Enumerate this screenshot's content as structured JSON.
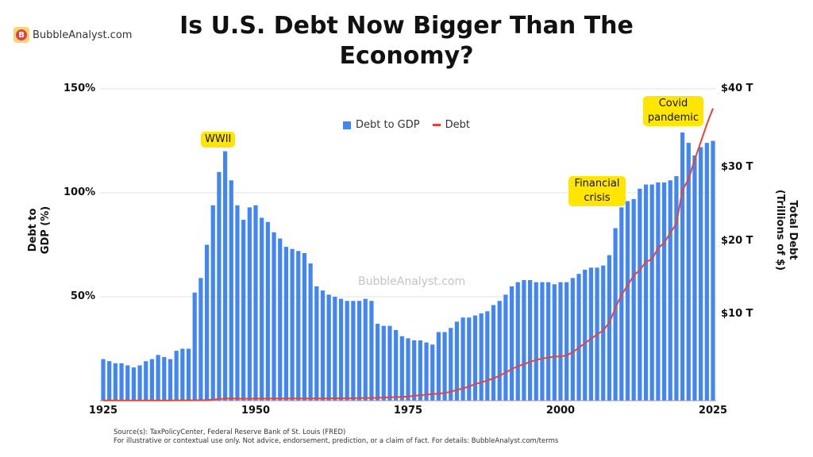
{
  "brand": {
    "logo_letter": "B",
    "name": "BubbleAnalyst.com"
  },
  "title": "Is U.S. Debt Now Bigger Than The Economy?",
  "watermark": "BubbleAnalyst.com",
  "footer": {
    "source": "Source(s): TaxPolicyCenter, Federal Reserve Bank of St. Louis (FRED)",
    "disclaimer": "For illustrative or contextual use only. Not advice, endorsement, prediction, or a claim of fact. For details: BubbleAnalyst.com/terms"
  },
  "chart_data": {
    "type": "bar+line",
    "title": "Is U.S. Debt Now Bigger Than The Economy?",
    "x_start": 1925,
    "x_end": 2025,
    "x_ticks": [
      "1925",
      "1950",
      "1975",
      "2000",
      "2025"
    ],
    "y_left": {
      "label": "Debt to GDP (%)",
      "ticks": [
        "150%",
        "100%",
        "50%"
      ],
      "range": [
        0,
        150
      ]
    },
    "y_right": {
      "label": "Total Debt (Trillions of $)",
      "ticks": [
        "$40 T",
        "$30 T",
        "$20 T",
        "$10 T"
      ],
      "range": [
        0,
        40
      ]
    },
    "legend": {
      "position": "top-center",
      "items": [
        "Debt to GDP",
        "Debt"
      ]
    },
    "grid": true,
    "colors": {
      "bars": "#4285f4",
      "line": "#ea4335",
      "annotation": "#ffe600"
    },
    "series": [
      {
        "name": "Debt to GDP",
        "axis": "left",
        "type": "bar",
        "values": [
          20,
          19,
          18,
          18,
          17,
          16,
          17,
          19,
          20,
          22,
          21,
          20,
          24,
          25,
          25,
          52,
          59,
          75,
          94,
          110,
          120,
          106,
          94,
          87,
          93,
          94,
          88,
          86,
          81,
          78,
          74,
          73,
          72,
          71,
          66,
          55,
          53,
          51,
          50,
          49,
          48,
          48,
          48,
          49,
          48,
          37,
          36,
          36,
          34,
          31,
          30,
          29,
          29,
          28,
          27,
          33,
          33,
          35,
          38,
          40,
          40,
          41,
          42,
          43,
          46,
          48,
          51,
          55,
          57,
          58,
          58,
          57,
          57,
          57,
          56,
          57,
          57,
          59,
          61,
          63,
          64,
          64,
          65,
          70,
          83,
          93,
          96,
          97,
          102,
          104,
          104,
          105,
          105,
          106,
          108,
          129,
          124,
          118,
          122,
          124,
          125
        ]
      },
      {
        "name": "Debt",
        "axis": "right",
        "type": "line",
        "values": [
          0.02,
          0.02,
          0.02,
          0.02,
          0.02,
          0.02,
          0.02,
          0.02,
          0.02,
          0.03,
          0.03,
          0.03,
          0.04,
          0.04,
          0.04,
          0.05,
          0.06,
          0.08,
          0.14,
          0.2,
          0.26,
          0.27,
          0.26,
          0.25,
          0.25,
          0.26,
          0.26,
          0.26,
          0.27,
          0.27,
          0.27,
          0.27,
          0.27,
          0.28,
          0.28,
          0.29,
          0.29,
          0.3,
          0.31,
          0.31,
          0.32,
          0.32,
          0.33,
          0.35,
          0.35,
          0.37,
          0.4,
          0.43,
          0.46,
          0.48,
          0.54,
          0.62,
          0.7,
          0.77,
          0.83,
          0.91,
          0.99,
          1.14,
          1.38,
          1.57,
          1.82,
          2.13,
          2.35,
          2.6,
          2.86,
          3.21,
          3.6,
          4.06,
          4.41,
          4.69,
          4.97,
          5.22,
          5.41,
          5.53,
          5.66,
          5.67,
          5.81,
          6.23,
          6.78,
          7.38,
          7.93,
          8.51,
          9.01,
          10.02,
          11.91,
          13.56,
          14.79,
          16.07,
          16.74,
          17.82,
          18.15,
          19.57,
          20.24,
          21.52,
          22.72,
          27.0,
          28.43,
          30.93,
          33.17,
          35.46,
          37.5
        ]
      }
    ],
    "annotations": [
      {
        "text": "WWII",
        "year": 1945
      },
      {
        "text": "Financial crisis",
        "year": 2008
      },
      {
        "text": "Covid pandemic",
        "year": 2020
      }
    ]
  }
}
